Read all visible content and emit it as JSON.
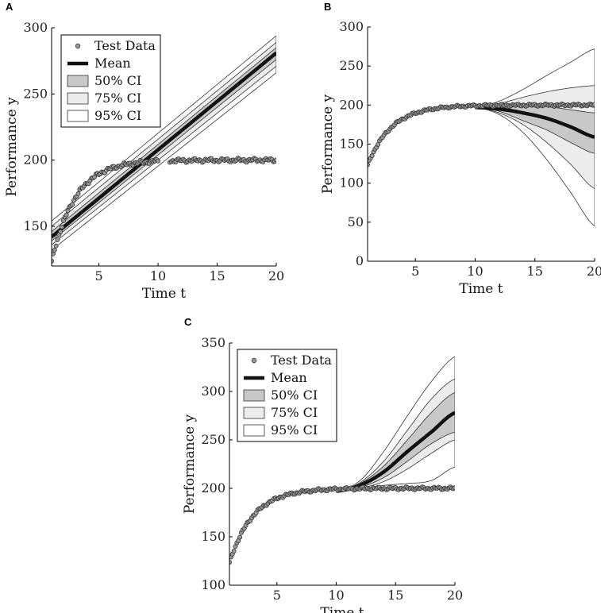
{
  "chart_data": [
    {
      "id": "A",
      "type": "line",
      "panel_label": "A",
      "xlabel": "Time t",
      "ylabel": "Performance y",
      "xlim": [
        1,
        20
      ],
      "ylim": [
        120,
        300
      ],
      "xticks": [
        5,
        10,
        15,
        20
      ],
      "yticks": [
        150,
        200,
        250,
        300
      ],
      "legend": {
        "position": "top-left",
        "entries": [
          {
            "kind": "marker",
            "label": "Test Data"
          },
          {
            "kind": "mean",
            "label": "Mean"
          },
          {
            "kind": "ci50",
            "label": "50% CI"
          },
          {
            "kind": "ci75",
            "label": "75% CI"
          },
          {
            "kind": "ci95",
            "label": "95% CI"
          }
        ]
      },
      "mean": {
        "x": [
          1,
          20
        ],
        "y": [
          142,
          281
        ]
      },
      "bands": [
        {
          "name": "95% CI",
          "lower": {
            "x": [
              1,
              20
            ],
            "y": [
              132,
              266
            ]
          },
          "upper": {
            "x": [
              1,
              20
            ],
            "y": [
              154,
              294
            ]
          }
        },
        {
          "name": "75% CI",
          "lower": {
            "x": [
              1,
              20
            ],
            "y": [
              136,
              271
            ]
          },
          "upper": {
            "x": [
              1,
              20
            ],
            "y": [
              150,
              289
            ]
          }
        },
        {
          "name": "50% CI",
          "lower": {
            "x": [
              1,
              20
            ],
            "y": [
              139,
              276
            ]
          },
          "upper": {
            "x": [
              1,
              20
            ],
            "y": [
              146,
              285
            ]
          }
        }
      ],
      "test_data": {
        "x_start": 1,
        "x_end": 20,
        "step": 0.125,
        "gap": [
          10,
          11
        ],
        "a": 200,
        "b": 77,
        "k": 0.5
      }
    },
    {
      "id": "B",
      "type": "line",
      "panel_label": "B",
      "xlabel": "Time t",
      "ylabel": "Performance y",
      "xlim": [
        1,
        20
      ],
      "ylim": [
        0,
        300
      ],
      "xticks": [
        5,
        10,
        15,
        20
      ],
      "yticks": [
        0,
        50,
        100,
        150,
        200,
        250,
        300
      ],
      "legend": null,
      "mean": {
        "x": [
          10,
          12,
          14,
          16,
          18,
          20
        ],
        "y": [
          197,
          195,
          190,
          183,
          172,
          159
        ]
      },
      "bands": [
        {
          "name": "95% CI",
          "lower": {
            "x": [
              10,
              12,
              14,
              16,
              18,
              20
            ],
            "y": [
              197,
              188,
              165,
              130,
              88,
              45
            ]
          },
          "upper": {
            "x": [
              10,
              12,
              14,
              16,
              18,
              20
            ],
            "y": [
              197,
              205,
              220,
              238,
              255,
              272
            ]
          }
        },
        {
          "name": "75% CI",
          "lower": {
            "x": [
              10,
              12,
              14,
              16,
              18,
              20
            ],
            "y": [
              197,
              190,
              175,
              152,
              124,
              93
            ]
          },
          "upper": {
            "x": [
              10,
              12,
              14,
              16,
              18,
              20
            ],
            "y": [
              197,
              202,
              210,
              217,
              222,
              225
            ]
          }
        },
        {
          "name": "50% CI",
          "lower": {
            "x": [
              10,
              12,
              14,
              16,
              18,
              20
            ],
            "y": [
              197,
              192,
              180,
              168,
              152,
              138
            ]
          },
          "upper": {
            "x": [
              10,
              12,
              14,
              16,
              18,
              20
            ],
            "y": [
              197,
              199,
              199,
              198,
              194,
              190
            ]
          }
        }
      ],
      "test_data": {
        "x_start": 1,
        "x_end": 20,
        "step": 0.125,
        "gap": null,
        "a": 200,
        "b": 77,
        "k": 0.5
      }
    },
    {
      "id": "C",
      "type": "line",
      "panel_label": "C",
      "xlabel": "Time t",
      "ylabel": "Performance y",
      "xlim": [
        1,
        20
      ],
      "ylim": [
        100,
        350
      ],
      "xticks": [
        5,
        10,
        15,
        20
      ],
      "yticks": [
        100,
        150,
        200,
        250,
        300,
        350
      ],
      "legend": {
        "position": "top-left",
        "entries": [
          {
            "kind": "marker",
            "label": "Test Data"
          },
          {
            "kind": "mean",
            "label": "Mean"
          },
          {
            "kind": "ci50",
            "label": "50% CI"
          },
          {
            "kind": "ci75",
            "label": "75% CI"
          },
          {
            "kind": "ci95",
            "label": "95% CI"
          }
        ]
      },
      "mean": {
        "x": [
          10,
          12,
          14,
          16,
          18,
          20
        ],
        "y": [
          197,
          203,
          217,
          238,
          258,
          278
        ]
      },
      "bands": [
        {
          "name": "95% CI",
          "lower": {
            "x": [
              10,
              12,
              14,
              16,
              18,
              20
            ],
            "y": [
              197,
              199,
              203,
              205,
              208,
              222
            ]
          },
          "upper": {
            "x": [
              10,
              12,
              14,
              16,
              18,
              20
            ],
            "y": [
              197,
              208,
              238,
              275,
              310,
              336
            ]
          }
        },
        {
          "name": "75% CI",
          "lower": {
            "x": [
              10,
              12,
              14,
              16,
              18,
              20
            ],
            "y": [
              197,
              200,
              207,
              220,
              236,
              250
            ]
          },
          "upper": {
            "x": [
              10,
              12,
              14,
              16,
              18,
              20
            ],
            "y": [
              197,
              206,
              228,
              260,
              292,
              313
            ]
          }
        },
        {
          "name": "50% CI",
          "lower": {
            "x": [
              10,
              12,
              14,
              16,
              18,
              20
            ],
            "y": [
              197,
              201,
              211,
              228,
              246,
              258
            ]
          },
          "upper": {
            "x": [
              10,
              12,
              14,
              16,
              18,
              20
            ],
            "y": [
              197,
              205,
              223,
              250,
              278,
              299
            ]
          }
        }
      ],
      "test_data": {
        "x_start": 1,
        "x_end": 20,
        "step": 0.125,
        "gap": null,
        "a": 200,
        "b": 77,
        "k": 0.5
      }
    }
  ],
  "colors": {
    "ci50": "#c8c8c8",
    "ci75": "#ececec",
    "ci95": "#ffffff",
    "mean": "#111111",
    "marker_fill": "#9a9a9a",
    "marker_stroke": "#333333",
    "axis": "#000000"
  }
}
